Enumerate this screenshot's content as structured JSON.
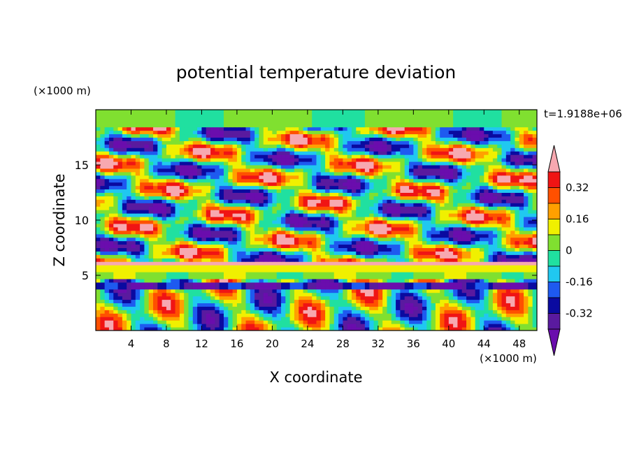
{
  "chart_data": {
    "type": "heatmap",
    "title": "potential temperature deviation",
    "xlabel": "X coordinate",
    "ylabel": "Z coordinate",
    "x_unit": "(×1000 m)",
    "y_unit": "(×1000 m)",
    "time_label": "t=1.9188e+06",
    "xlim": [
      0,
      50
    ],
    "ylim": [
      0,
      20
    ],
    "x_ticks": [
      4,
      8,
      12,
      16,
      20,
      24,
      28,
      32,
      36,
      40,
      44,
      48
    ],
    "x_tick_labels": [
      "4",
      "8",
      "12",
      "16",
      "20",
      "24",
      "28",
      "32",
      "36",
      "40",
      "44",
      "48"
    ],
    "y_ticks": [
      5,
      10,
      15
    ],
    "y_tick_labels": [
      "5",
      "10",
      "15"
    ],
    "colorbar": {
      "levels": [
        -0.4,
        -0.32,
        -0.24,
        -0.16,
        -0.08,
        0,
        0.08,
        0.16,
        0.24,
        0.32,
        0.4
      ],
      "colors": [
        "#6a0dad",
        "#5a1a9f",
        "#0a0aa0",
        "#1e5af0",
        "#20c8f0",
        "#20e0a0",
        "#80e030",
        "#f0f000",
        "#ffa000",
        "#ff5000",
        "#f01414",
        "#f7a8b0"
      ],
      "tick_values": [
        0.32,
        0.16,
        0,
        -0.16,
        -0.32
      ],
      "tick_labels": [
        "0.32",
        "0.16",
        "0",
        "-0.16",
        "-0.32"
      ],
      "extend": "both"
    }
  }
}
